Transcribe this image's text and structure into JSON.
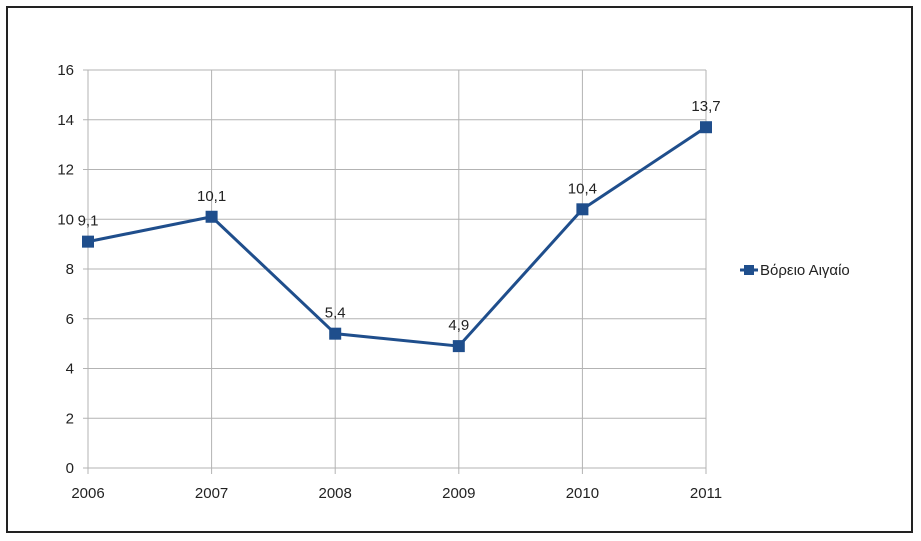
{
  "chart_data": {
    "type": "line",
    "categories": [
      "2006",
      "2007",
      "2008",
      "2009",
      "2010",
      "2011"
    ],
    "series": [
      {
        "name": "Βόρειο Αιγαίο",
        "values": [
          9.1,
          10.1,
          5.4,
          4.9,
          10.4,
          13.7
        ],
        "labels": [
          "9,1",
          "10,1",
          "5,4",
          "4,9",
          "10,4",
          "13,7"
        ],
        "color": "#1f4e8c"
      }
    ],
    "y_ticks": [
      "0",
      "2",
      "4",
      "6",
      "8",
      "10",
      "12",
      "14",
      "16"
    ],
    "ylim": [
      0,
      16
    ],
    "grid": true,
    "legend_position": "right",
    "marker": "square"
  }
}
